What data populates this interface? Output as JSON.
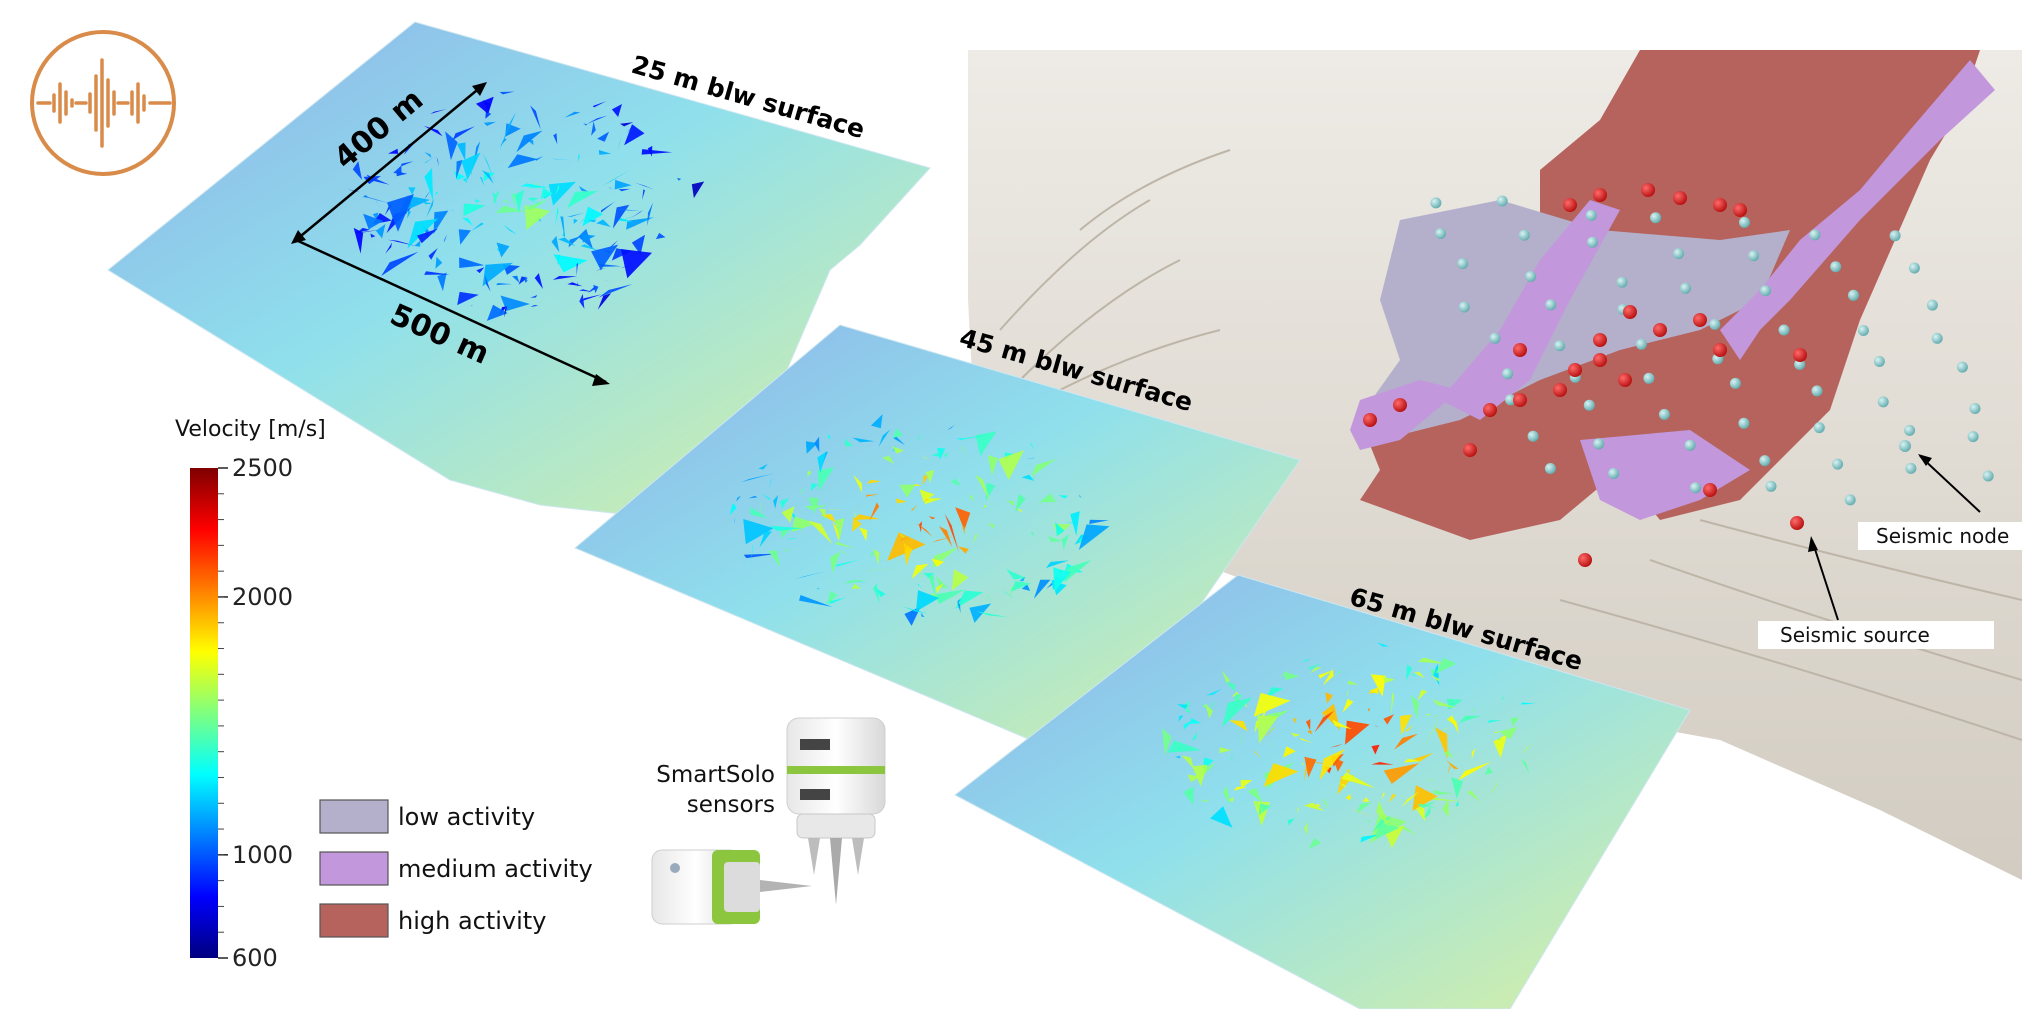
{
  "logo": {
    "icon": "seismic-waveform-icon",
    "color": "#d98c4a"
  },
  "slices": [
    {
      "label": "25 m blw surface"
    },
    {
      "label": "45 m blw surface"
    },
    {
      "label": "65 m blw surface"
    }
  ],
  "dimensions": {
    "width_label": "400 m",
    "length_label": "500 m"
  },
  "colorbar": {
    "title": "Velocity [m/s]",
    "min": 600,
    "max": 2500,
    "ticks": [
      "2500",
      "2000",
      "1000",
      "600"
    ],
    "colormap": "jet"
  },
  "activity_legend": [
    {
      "label": "low activity",
      "color": "#b4b0cc"
    },
    {
      "label": "medium activity",
      "color": "#c297dc"
    },
    {
      "label": "high activity",
      "color": "#b5635c"
    }
  ],
  "sensors": {
    "line1": "SmartSolo",
    "line2": "sensors",
    "accent": "#8cc63f"
  },
  "terrain_map": {
    "node_label": "Seismic node",
    "source_label": "Seismic source",
    "node_color": "#86c6c8",
    "source_color": "#cc1515"
  }
}
